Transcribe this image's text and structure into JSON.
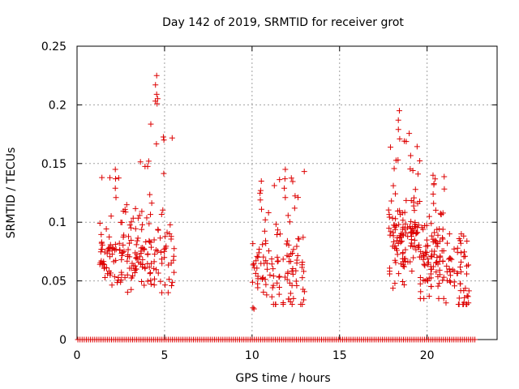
{
  "chart_data": {
    "type": "scatter",
    "title": "Day 142 of 2019, SRMTID for receiver grot",
    "xlabel": "GPS time / hours",
    "ylabel": "SRMTID / TECUs",
    "xlim": [
      0,
      24
    ],
    "ylim": [
      0,
      0.25
    ],
    "xticks": [
      0,
      5,
      10,
      15,
      20
    ],
    "yticks": [
      0,
      0.05,
      0.1,
      0.15,
      0.2,
      0.25
    ],
    "xtick_labels": [
      "0",
      "5",
      "10",
      "15",
      "20"
    ],
    "ytick_labels": [
      "0",
      "0.05",
      "0.1",
      "0.15",
      "0.2",
      "0.25"
    ],
    "grid": true,
    "marker": "+",
    "marker_color": "#dd0000",
    "clusters": [
      {
        "x_range": [
          1.3,
          3.3
        ],
        "y_median": 0.075,
        "y_spread": [
          0.04,
          0.145
        ],
        "n": 95
      },
      {
        "x_range": [
          3.3,
          5.6
        ],
        "y_median": 0.075,
        "y_spread": [
          0.04,
          0.225
        ],
        "n": 110
      },
      {
        "x_range": [
          10.0,
          11.2
        ],
        "y_median": 0.06,
        "y_spread": [
          0.02,
          0.135
        ],
        "n": 45
      },
      {
        "x_range": [
          11.2,
          13.0
        ],
        "y_median": 0.06,
        "y_spread": [
          0.03,
          0.145
        ],
        "n": 75
      },
      {
        "x_range": [
          17.8,
          19.6
        ],
        "y_median": 0.085,
        "y_spread": [
          0.04,
          0.195
        ],
        "n": 130
      },
      {
        "x_range": [
          19.6,
          21.0
        ],
        "y_median": 0.07,
        "y_spread": [
          0.035,
          0.14
        ],
        "n": 95
      },
      {
        "x_range": [
          21.0,
          22.4
        ],
        "y_median": 0.055,
        "y_spread": [
          0.03,
          0.09
        ],
        "n": 55
      }
    ],
    "zero_band": {
      "x_range": [
        0,
        22.8
      ],
      "y": 0
    }
  }
}
